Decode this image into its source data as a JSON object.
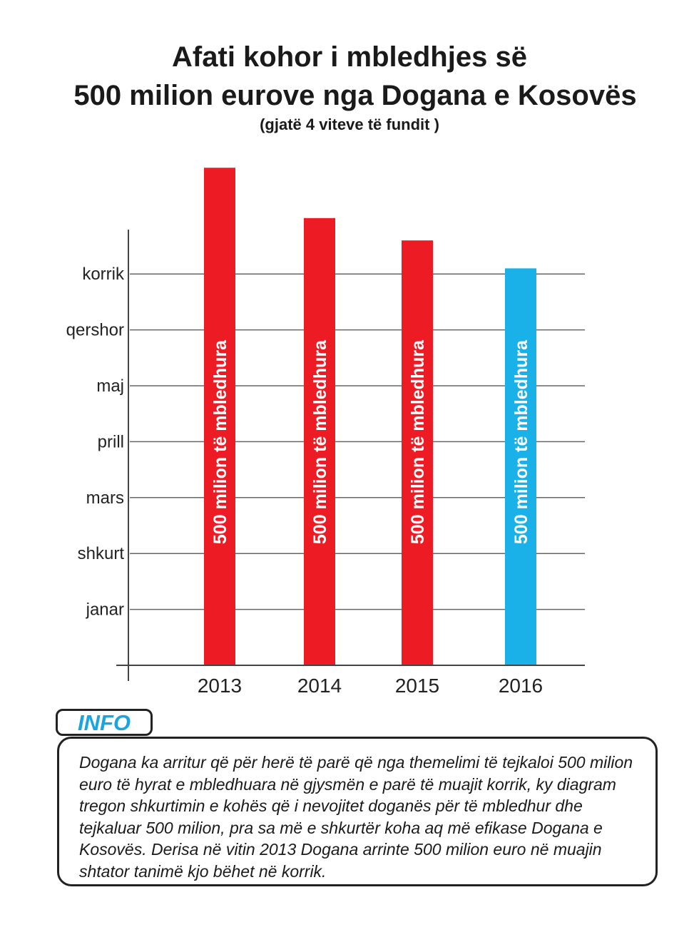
{
  "header": {
    "title_line1": "Afati kohor i mbledhjes së",
    "title_line2": "500 milion eurove nga Dogana e Kosovës",
    "subtitle": "(gjatë 4 viteve të fundit )"
  },
  "chart_data": {
    "type": "bar",
    "categories": [
      "2013",
      "2014",
      "2015",
      "2016"
    ],
    "values": [
      8.9,
      8.0,
      7.6,
      7.1
    ],
    "y_tick_labels": [
      "janar",
      "shkurt",
      "mars",
      "prill",
      "maj",
      "qershor",
      "korrik"
    ],
    "y_tick_values": [
      1,
      2,
      3,
      4,
      5,
      6,
      7
    ],
    "ylim": [
      0,
      8.9
    ],
    "bar_label": "500 milion të mbledhura",
    "grid": true,
    "colors": [
      "#ed1c24",
      "#ed1c24",
      "#ed1c24",
      "#1ab0e8"
    ]
  },
  "info": {
    "tab_label": "INFO",
    "text": "Dogana ka arritur që për herë të parë që nga themelimi të tejkaloi 500 milion euro të hyrat e mbledhuara në gjysmën e parë të muajit korrik, ky diagram tregon shkurtimin e kohës që i nevojitet doganës për të mbledhur dhe tejkaluar 500 milion, pra sa më e shkurtër koha aq më efikase Dogana e Kosovës. Derisa në vitin 2013 Dogana arrinte 500 milion euro në muajin shtator tanimë kjo bëhet në korrik."
  }
}
